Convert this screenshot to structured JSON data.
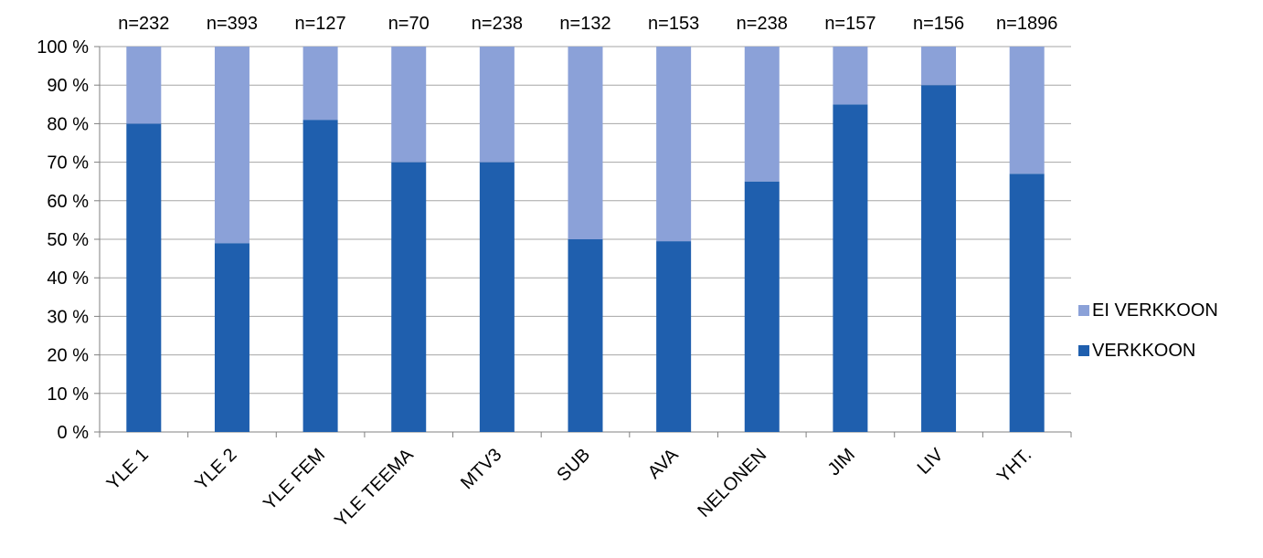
{
  "chart_data": {
    "type": "bar",
    "stacked": true,
    "percent": true,
    "title": "",
    "xlabel": "",
    "ylabel": "",
    "ylim": [
      0,
      100
    ],
    "yticks": [
      "0 %",
      "10 %",
      "20 %",
      "30 %",
      "40 %",
      "50 %",
      "60 %",
      "70 %",
      "80 %",
      "90 %",
      "100 %"
    ],
    "grid": true,
    "legend_position": "right",
    "categories": [
      "YLE 1",
      "YLE 2",
      "YLE FEM",
      "YLE TEEMA",
      "MTV3",
      "SUB",
      "AVA",
      "NELONEN",
      "JIM",
      "LIV",
      "YHT."
    ],
    "top_labels": [
      "n=232",
      "n=393",
      "n=127",
      "n=70",
      "n=238",
      "n=132",
      "n=153",
      "n=238",
      "n=157",
      "n=156",
      "n=1896"
    ],
    "series": [
      {
        "name": "VERKKOON",
        "color": "#1f5fae",
        "values": [
          80,
          49,
          81,
          70,
          70,
          50,
          49.5,
          65,
          85,
          90,
          67
        ]
      },
      {
        "name": "EI VERKKOON",
        "color": "#8ba1d8",
        "values": [
          20,
          51,
          19,
          30,
          30,
          50,
          50.5,
          35,
          15,
          10,
          33
        ]
      }
    ]
  }
}
